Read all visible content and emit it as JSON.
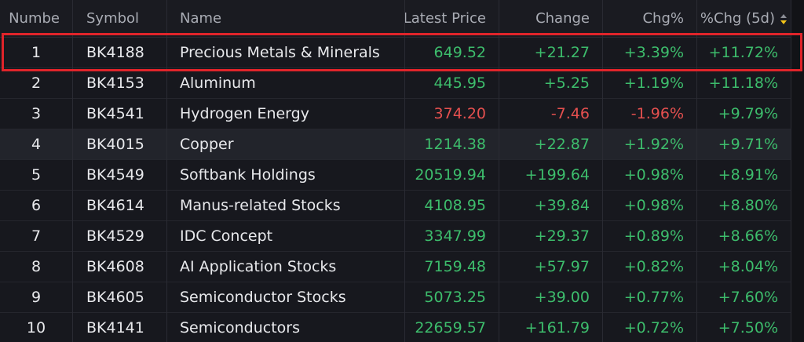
{
  "table": {
    "columns": [
      "Numbe",
      "Symbol",
      "Name",
      "Latest Price",
      "Change",
      "Chg%",
      "%Chg (5d)"
    ],
    "rows": [
      [
        "1",
        "BK4188",
        "Precious Metals & Minerals",
        "649.52",
        "+21.27",
        "+3.39%",
        "+11.72%"
      ],
      [
        "2",
        "BK4153",
        "Aluminum",
        "445.95",
        "+5.25",
        "+1.19%",
        "+11.18%"
      ],
      [
        "3",
        "BK4541",
        "Hydrogen Energy",
        "374.20",
        "-7.46",
        "-1.96%",
        "+9.79%"
      ],
      [
        "4",
        "BK4015",
        "Copper",
        "1214.38",
        "+22.87",
        "+1.92%",
        "+9.71%"
      ],
      [
        "5",
        "BK4549",
        "Softbank Holdings",
        "20519.94",
        "+199.64",
        "+0.98%",
        "+8.91%"
      ],
      [
        "6",
        "BK4614",
        "Manus-related Stocks",
        "4108.95",
        "+39.84",
        "+0.98%",
        "+8.80%"
      ],
      [
        "7",
        "BK4529",
        "IDC Concept",
        "3347.99",
        "+29.37",
        "+0.89%",
        "+8.66%"
      ],
      [
        "8",
        "BK4608",
        "AI Application Stocks",
        "7159.48",
        "+57.97",
        "+0.82%",
        "+8.04%"
      ],
      [
        "9",
        "BK4605",
        "Semiconductor Stocks",
        "5073.25",
        "+39.00",
        "+0.77%",
        "+7.60%"
      ],
      [
        "10",
        "BK4141",
        "Semiconductors",
        "22659.57",
        "+161.79",
        "+0.72%",
        "+7.50%"
      ]
    ]
  }
}
